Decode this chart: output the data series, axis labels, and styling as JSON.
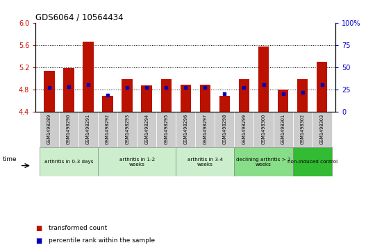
{
  "title": "GDS6064 / 10564434",
  "samples": [
    "GSM1498289",
    "GSM1498290",
    "GSM1498291",
    "GSM1498292",
    "GSM1498293",
    "GSM1498294",
    "GSM1498295",
    "GSM1498296",
    "GSM1498297",
    "GSM1498298",
    "GSM1498299",
    "GSM1498300",
    "GSM1498301",
    "GSM1498302",
    "GSM1498303"
  ],
  "transformed_count": [
    5.13,
    5.18,
    5.66,
    4.68,
    4.98,
    4.87,
    4.98,
    4.88,
    4.88,
    4.68,
    4.98,
    5.57,
    4.8,
    4.98,
    5.3
  ],
  "percentile_rank": [
    27,
    28,
    30,
    19,
    27,
    27,
    27,
    27,
    27,
    20,
    27,
    30,
    20,
    22,
    30
  ],
  "ylim_left": [
    4.4,
    6.0
  ],
  "ylim_right": [
    0,
    100
  ],
  "yticks_left": [
    4.4,
    4.8,
    5.2,
    5.6,
    6.0
  ],
  "yticks_right": [
    0,
    25,
    50,
    75,
    100
  ],
  "bar_color": "#bb1100",
  "dot_color": "#0000bb",
  "bar_bottom": 4.4,
  "groups": [
    {
      "label": "arthritis in 0-3 days",
      "indices": [
        0,
        1,
        2
      ],
      "color": "#cceecc"
    },
    {
      "label": "arthritis in 1-2\nweeks",
      "indices": [
        3,
        4,
        5,
        6
      ],
      "color": "#cceecc"
    },
    {
      "label": "arthritis in 3-4\nweeks",
      "indices": [
        7,
        8,
        9
      ],
      "color": "#cceecc"
    },
    {
      "label": "declining arthritis > 2\nweeks",
      "indices": [
        10,
        11,
        12
      ],
      "color": "#88dd88"
    },
    {
      "label": "non-induced control",
      "indices": [
        13,
        14
      ],
      "color": "#33bb33"
    }
  ],
  "legend_bar_label": "transformed count",
  "legend_dot_label": "percentile rank within the sample",
  "axis_label_color_left": "#cc1100",
  "axis_label_color_right": "#0000cc",
  "sample_bg_color": "#cccccc"
}
